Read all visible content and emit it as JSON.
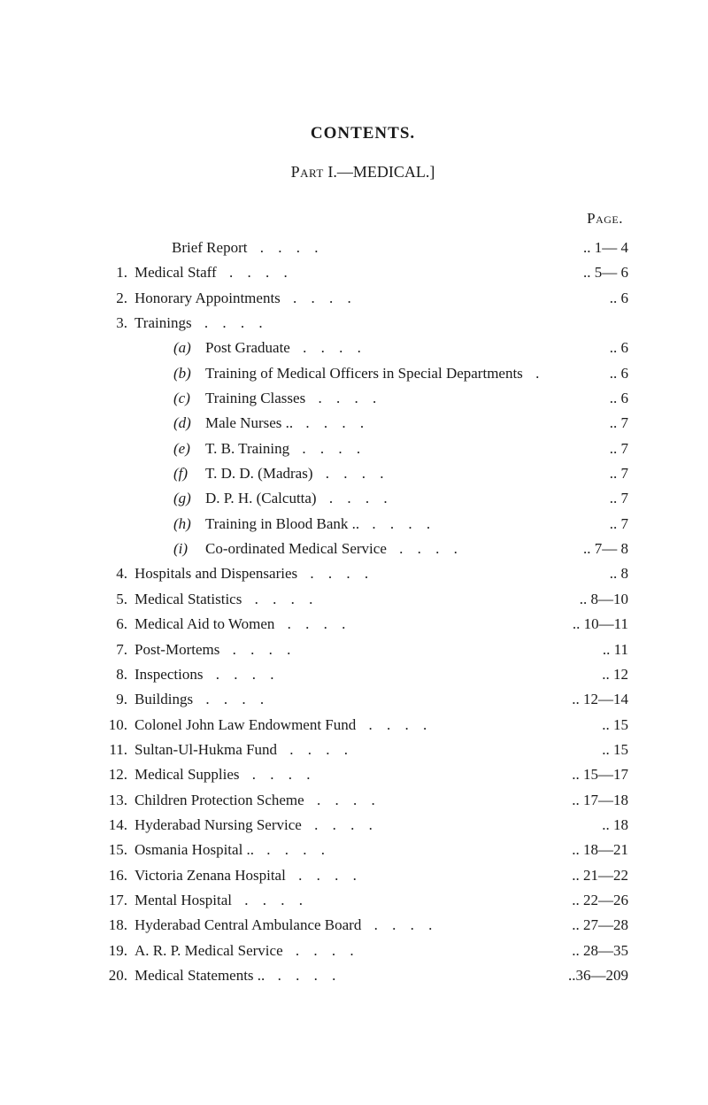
{
  "title": "CONTENTS.",
  "subtitle_prefix": "Part",
  "subtitle_roman": "I.—MEDICAL.]",
  "page_label": "Page.",
  "entries": [
    {
      "num": "",
      "sub": "",
      "label": "Brief Report",
      "page": "1— 4",
      "indent": "indent1"
    },
    {
      "num": "1.",
      "sub": "",
      "label": "Medical Staff",
      "page": "5— 6",
      "indent": ""
    },
    {
      "num": "2.",
      "sub": "",
      "label": "Honorary Appointments",
      "page": "6",
      "indent": ""
    },
    {
      "num": "3.",
      "sub": "",
      "label": "Trainings",
      "page": "",
      "indent": ""
    },
    {
      "num": "",
      "sub": "(a)",
      "label": "Post Graduate",
      "page": "6",
      "indent": "indent-sub"
    },
    {
      "num": "",
      "sub": "(b)",
      "label": "Training of Medical Officers in Special Departments",
      "page": "6",
      "indent": "indent-sub"
    },
    {
      "num": "",
      "sub": "(c)",
      "label": "Training Classes",
      "page": "6",
      "indent": "indent-sub"
    },
    {
      "num": "",
      "sub": "(d)",
      "label": "Male Nurses ..",
      "page": "7",
      "indent": "indent-sub"
    },
    {
      "num": "",
      "sub": "(e)",
      "label": "T. B. Training",
      "page": "7",
      "indent": "indent-sub"
    },
    {
      "num": "",
      "sub": "(f)",
      "label": "T. D. D. (Madras)",
      "page": "7",
      "indent": "indent-sub"
    },
    {
      "num": "",
      "sub": "(g)",
      "label": "D. P. H. (Calcutta)",
      "page": "7",
      "indent": "indent-sub"
    },
    {
      "num": "",
      "sub": "(h)",
      "label": "Training in Blood Bank ..",
      "page": "7",
      "indent": "indent-sub"
    },
    {
      "num": "",
      "sub": "(i)",
      "label": "Co-ordinated Medical Service",
      "page": "7— 8",
      "indent": "indent-sub"
    },
    {
      "num": "4.",
      "sub": "",
      "label": "Hospitals and Dispensaries",
      "page": "8",
      "indent": ""
    },
    {
      "num": "5.",
      "sub": "",
      "label": "Medical Statistics",
      "page": "8—10",
      "indent": ""
    },
    {
      "num": "6.",
      "sub": "",
      "label": "Medical Aid to Women",
      "page": "10—11",
      "indent": ""
    },
    {
      "num": "7.",
      "sub": "",
      "label": "Post-Mortems",
      "page": "11",
      "indent": ""
    },
    {
      "num": "8.",
      "sub": "",
      "label": "Inspections",
      "page": "12",
      "indent": ""
    },
    {
      "num": "9.",
      "sub": "",
      "label": "Buildings",
      "page": "12—14",
      "indent": ""
    },
    {
      "num": "10.",
      "sub": "",
      "label": "Colonel John Law Endowment Fund",
      "page": "15",
      "indent": ""
    },
    {
      "num": "11.",
      "sub": "",
      "label": "Sultan-Ul-Hukma Fund",
      "page": "15",
      "indent": ""
    },
    {
      "num": "12.",
      "sub": "",
      "label": "Medical Supplies",
      "page": "15—17",
      "indent": ""
    },
    {
      "num": "13.",
      "sub": "",
      "label": "Children Protection Scheme",
      "page": "17—18",
      "indent": ""
    },
    {
      "num": "14.",
      "sub": "",
      "label": "Hyderabad Nursing Service",
      "page": "18",
      "indent": ""
    },
    {
      "num": "15.",
      "sub": "",
      "label": "Osmania Hospital ..",
      "page": "18—21",
      "indent": ""
    },
    {
      "num": "16.",
      "sub": "",
      "label": "Victoria Zenana Hospital",
      "page": "21—22",
      "indent": ""
    },
    {
      "num": "17.",
      "sub": "",
      "label": "Mental Hospital",
      "page": "22—26",
      "indent": ""
    },
    {
      "num": "18.",
      "sub": "",
      "label": "Hyderabad Central Ambulance Board",
      "page": "27—28",
      "indent": ""
    },
    {
      "num": "19.",
      "sub": "",
      "label": "A. R. P. Medical Service",
      "page": "28—35",
      "indent": ""
    },
    {
      "num": "20.",
      "sub": "",
      "label": "Medical Statements ..",
      "page": "..36—209",
      "indent": ""
    }
  ],
  "dots_short": ". .",
  "style": {
    "background": "#ffffff",
    "text_color": "#1a1a1a",
    "font_family": "Times New Roman",
    "title_fontsize": 19,
    "body_fontsize": 17,
    "line_height": 1.55
  }
}
